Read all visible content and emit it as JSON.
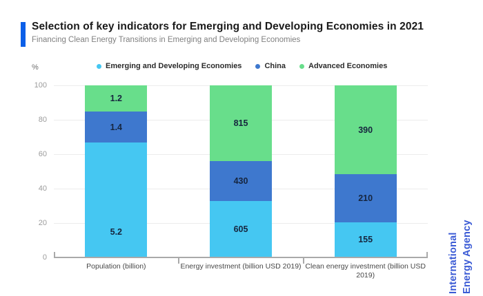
{
  "header": {
    "title": "Selection of key indicators for Emerging and Developing Economies in 2021",
    "subtitle": "Financing Clean Energy Transitions in Emerging and Developing Economies"
  },
  "branding": {
    "line1": "International",
    "line2": "Energy Agency"
  },
  "colors": {
    "accent_bar": "#0C5FE8",
    "brand_text": "#3A5AD5",
    "emde": "#45C7F2",
    "china": "#3E78CE",
    "advanced": "#68DE8B"
  },
  "chart_data": {
    "type": "bar",
    "stacked": true,
    "normalized_to_100": true,
    "grid": true,
    "legend_position": "top",
    "y_axis": {
      "unit_label": "%",
      "ticks": [
        0,
        20,
        40,
        60,
        80,
        100
      ],
      "min": 0,
      "max": 100
    },
    "categories": [
      "Population (billion)",
      "Energy investment (billion USD 2019)",
      "Clean energy investment (billion USD 2019)"
    ],
    "series": [
      {
        "name": "Emerging and Developing Economies",
        "color": "#45C7F2",
        "values": [
          5.2,
          605,
          155
        ]
      },
      {
        "name": "China",
        "color": "#3E78CE",
        "values": [
          1.4,
          430,
          210
        ]
      },
      {
        "name": "Advanced Economies",
        "color": "#68DE8B",
        "values": [
          1.2,
          815,
          390
        ]
      }
    ]
  }
}
